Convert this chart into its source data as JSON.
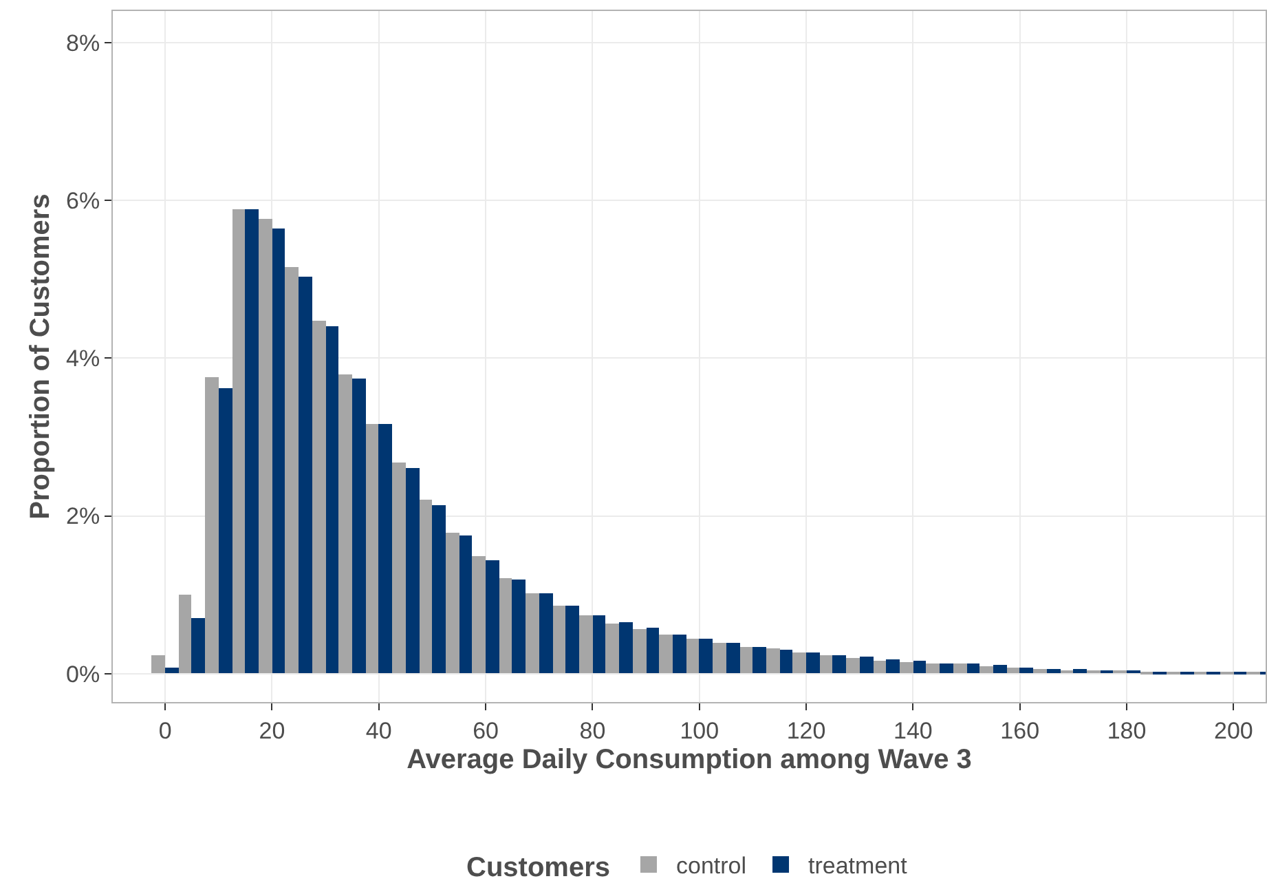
{
  "chart_data": {
    "type": "bar",
    "xlabel": "Average Daily Consumption among Wave 3",
    "ylabel": "Proportion of Customers",
    "legend_title": "Customers",
    "x": [
      0,
      5,
      10,
      15,
      20,
      25,
      30,
      35,
      40,
      45,
      50,
      55,
      60,
      65,
      70,
      75,
      80,
      85,
      90,
      95,
      100,
      105,
      110,
      115,
      120,
      125,
      130,
      135,
      140,
      145,
      150,
      155,
      160,
      165,
      170,
      175,
      180,
      185,
      190,
      195,
      200,
      205
    ],
    "series": [
      {
        "name": "control",
        "color": "#a6a6a6",
        "values": [
          0.24,
          1.0,
          3.75,
          5.89,
          5.77,
          5.16,
          4.47,
          3.8,
          3.17,
          2.67,
          2.2,
          1.78,
          1.49,
          1.21,
          1.01,
          0.87,
          0.74,
          0.63,
          0.57,
          0.5,
          0.44,
          0.39,
          0.34,
          0.32,
          0.26,
          0.23,
          0.19,
          0.17,
          0.15,
          0.13,
          0.12,
          0.1,
          0.08,
          0.06,
          0.05,
          0.05,
          0.04,
          0.03,
          0.03,
          0.02,
          0.02,
          0.02
        ]
      },
      {
        "name": "treatment",
        "color": "#003671",
        "values": [
          0.08,
          0.7,
          3.62,
          5.89,
          5.64,
          5.04,
          4.4,
          3.74,
          3.16,
          2.61,
          2.14,
          1.75,
          1.44,
          1.19,
          1.01,
          0.87,
          0.74,
          0.65,
          0.58,
          0.5,
          0.44,
          0.39,
          0.34,
          0.31,
          0.26,
          0.23,
          0.21,
          0.18,
          0.16,
          0.13,
          0.12,
          0.11,
          0.08,
          0.06,
          0.06,
          0.05,
          0.05,
          0.03,
          0.03,
          0.02,
          0.02,
          0.02
        ]
      }
    ],
    "xlim": [
      -9.8,
      206
    ],
    "xticks": [
      0,
      20,
      40,
      60,
      80,
      100,
      120,
      140,
      160,
      180,
      200
    ],
    "ylim": [
      -0.36,
      8.4
    ],
    "yticks": [
      {
        "value": 0,
        "label": "0%"
      },
      {
        "value": 2,
        "label": "2%"
      },
      {
        "value": 4,
        "label": "4%"
      },
      {
        "value": 6,
        "label": "6%"
      },
      {
        "value": 8,
        "label": "8%"
      }
    ],
    "grid": true,
    "legend": "bottom"
  }
}
